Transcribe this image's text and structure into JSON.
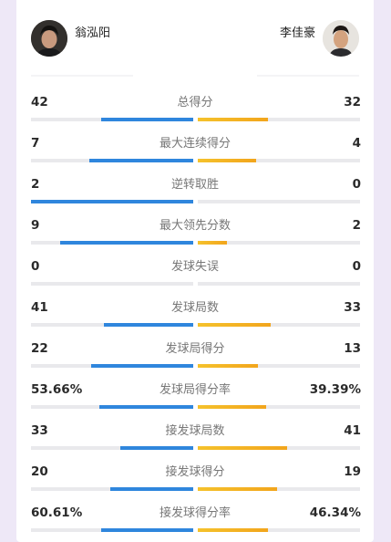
{
  "players": {
    "left": {
      "name": "翁泓阳"
    },
    "right": {
      "name": "李佳豪"
    }
  },
  "colors": {
    "left_bar": "#2f86dd",
    "right_bar": "#f4b223",
    "track": "#e9e9ec",
    "background": "#eee8f7"
  },
  "stats": [
    {
      "label": "总得分",
      "left": "42",
      "right": "32",
      "left_share": 0.57,
      "right_share": 0.43
    },
    {
      "label": "最大连续得分",
      "left": "7",
      "right": "4",
      "left_share": 0.64,
      "right_share": 0.36
    },
    {
      "label": "逆转取胜",
      "left": "2",
      "right": "0",
      "left_share": 1.0,
      "right_share": 0.0
    },
    {
      "label": "最大领先分数",
      "left": "9",
      "right": "2",
      "left_share": 0.82,
      "right_share": 0.18
    },
    {
      "label": "发球失误",
      "left": "0",
      "right": "0",
      "left_share": 0.0,
      "right_share": 0.0
    },
    {
      "label": "发球局数",
      "left": "41",
      "right": "33",
      "left_share": 0.55,
      "right_share": 0.45
    },
    {
      "label": "发球局得分",
      "left": "22",
      "right": "13",
      "left_share": 0.63,
      "right_share": 0.37
    },
    {
      "label": "发球局得分率",
      "left": "53.66%",
      "right": "39.39%",
      "left_share": 0.58,
      "right_share": 0.42
    },
    {
      "label": "接发球局数",
      "left": "33",
      "right": "41",
      "left_share": 0.45,
      "right_share": 0.55
    },
    {
      "label": "接发球得分",
      "left": "20",
      "right": "19",
      "left_share": 0.51,
      "right_share": 0.49
    },
    {
      "label": "接发球得分率",
      "left": "60.61%",
      "right": "46.34%",
      "left_share": 0.57,
      "right_share": 0.43
    }
  ]
}
